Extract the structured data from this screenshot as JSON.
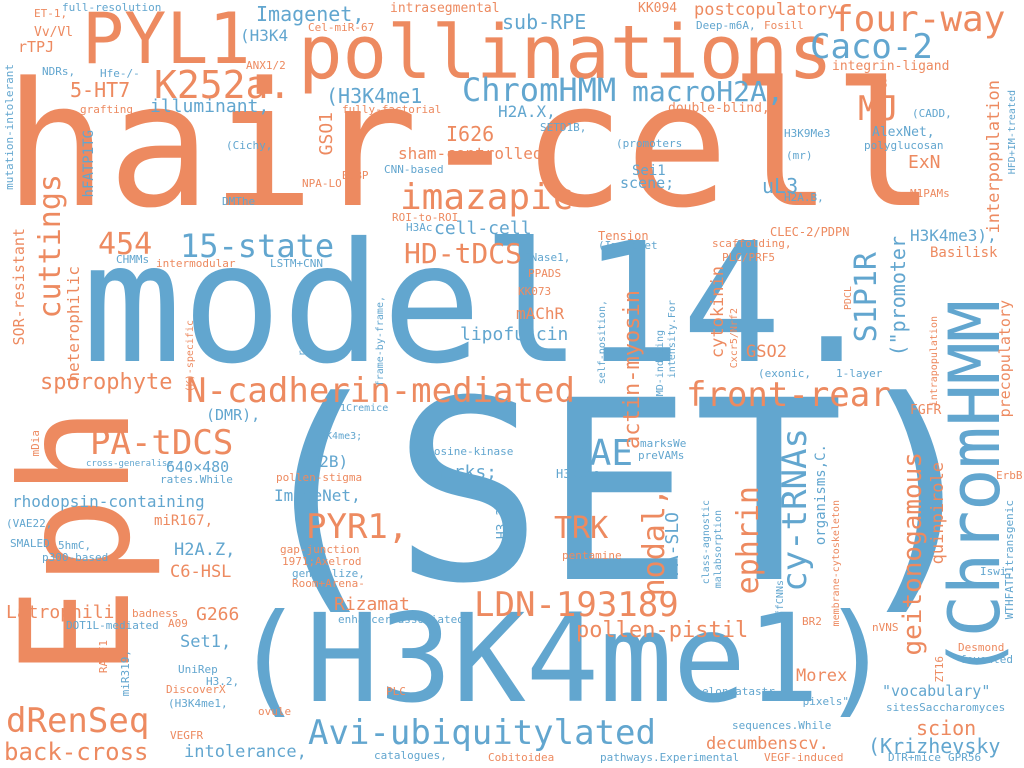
{
  "words": {
    "set": "(SET)",
    "model14": "model14.",
    "hair_cell": "hair-cell",
    "h3k4me1_big": "(H3K4me1)",
    "eph": "Eph",
    "pollinations": "pollinations",
    "pyl1": "PYL1",
    "chromhmm_v": "(ChromHMM",
    "four_way": "four-way",
    "caco2": "Caco-2",
    "k252a": "K252a.",
    "chromhmm_h": "ChromHMM",
    "macroh2a": "macroH2A,",
    "mj": "MJ",
    "imazapic": "imazapic",
    "n_cadherin": "N-cadherin-mediated",
    "front_rear": "front-rear",
    "ldn": "LDN-193189",
    "avi": "Avi-ubiquitylated",
    "drenseq": "dRenSeq",
    "back_cross": "back-cross",
    "pa_tdcs": "PA-tDCS",
    "pyr1": "PYR1,",
    "vae": "VAE",
    "trk": "TRK",
    "hd_tdcs": "HD-tDCS",
    "state15": "15-state",
    "n454": "454",
    "cuttings": "cuttings",
    "sporophyte": "sporophyte",
    "imagenet": "Imagenet,",
    "sub_rpe": "sub-RPE",
    "postcopulatory": "postcopulatory",
    "ht7": "5-HT7",
    "illuminant": "illuminant,",
    "h3k4": "(H3K4",
    "h3k4me1_s": "(H3K4me1",
    "h2ax": "H2A.X,",
    "i626": "I626",
    "sham": "sham-controlled",
    "gso1": "GSO1",
    "cell_cell": "cell-cell",
    "lipofuscin": "lipofuscin",
    "machr": "mAChR",
    "s1p1r": "S1P1R",
    "promoter": "(\"promoter",
    "h3k4me3": "H3K4me3),",
    "interpopulation": "interpopulation",
    "exn": "ExN",
    "ul3": "uL3",
    "gso2": "GSO2",
    "actin_myosin": "actin-myosin",
    "cytokinin": "cytokinin",
    "cy_trnas": "cy-tRNAs",
    "ephrin": "ephrin",
    "nodal": "nodal,",
    "fa_slo": "FA-SLO",
    "geitonogamous": "geitonogamous",
    "quinpirole": "quinpirole",
    "scion": "scion",
    "morex": "Morex",
    "vocabulary": "\"vocabulary\"",
    "krizhevsky": "(Krizhevsky",
    "decumbenscv": "decumbenscv.",
    "intolerance": "intolerance,",
    "pollen_pistil": "pollen-pistil",
    "rizamat": "Rizamat",
    "latrophilin": "Latrophilin",
    "g266": "G266",
    "set1": "Set1,",
    "c6_hsl": "C6-HSL",
    "h2az": "H2A.Z,",
    "mir167": "miR167,",
    "rhodopsin": "rhodopsin-containing",
    "imagenet2": "ImageNet,",
    "marks": "marks;",
    "h2b": "(H2B)",
    "dmr": "(DMR),",
    "res": "640×480",
    "heterophilic": "heterophilic",
    "sor": "SOR-resistant",
    "hfatp1tg": "hFATP1TG",
    "rtpj": "rTPJ",
    "vvvl": "Vv/Vl",
    "mutation": "mutation-intolerant",
    "full_res": "full-resolution",
    "intrasegmental": "intrasegmental",
    "kk094": "KK094",
    "integrin": "integrin-ligand",
    "v3": "V3",
    "double_blind": "double-blind,",
    "alexnet": "AlexNet,",
    "polyglucosan": "polyglucosan",
    "fgfr": "FGFR",
    "precopulatory": "precopulatory",
    "basilisk": "Basilisk",
    "clec2": "CLEC-2/PDPN",
    "plc_prf5": "PLC/PRF5",
    "pentamine": "pentamine",
    "enhancer": "enhancer-associated",
    "tyrosine": "tyrosine-kinase",
    "h3k9ac": "H3K9Ac,",
    "ppads": "PPADS",
    "kk073": "KK073",
    "dnase1": "DNase1,",
    "tension": "Tension",
    "scaffolding": "scaffolding,",
    "scene": "scene;",
    "sei1": "Sei1",
    "setd1b": "SETD1B,",
    "cnn_based": "CNN-based",
    "npa_lo": "NPA-LO",
    "roi": "ROI-to-ROI",
    "lstm": "LSTM+CNN",
    "chmms": "CHMMs",
    "intermodular": "intermodular",
    "dmthe": "DMThe",
    "cichy": "(Cichy,",
    "grafting": "grafting",
    "hfe": "Hfe-/-",
    "ndrs": "NDRs,",
    "et1": "ET-1,",
    "anx1": "ANX1/2",
    "cel_mir": "Cel-miR-67",
    "deep_m6a": "Deep-m6A,",
    "fosill": "Fosill",
    "h3k9me3": "H3K9Me3",
    "cadd": "(CADD,",
    "m1pams": "M1PAMs",
    "h2ab": "H2A.B,",
    "mdia": "mDia",
    "vae22": "(VAE22,",
    "smaled": "SMALED",
    "p300": "p300-based",
    "5hmc": "5hmC,",
    "badness": "badness",
    "dot1l": "DOT1L-mediated",
    "unirep": "UniRep",
    "discoverx": "DiscoverX",
    "vegfr": "VEGFR",
    "catalogues": "catalogues,",
    "vegf": "VEGF-induced",
    "dtr": "DTR+mice",
    "gpr56": "GPR56",
    "elongatastr": "elongatastr.",
    "pixels": "\"pixels\"",
    "sites": "sitesSaccharomyces",
    "desmond": "Desmond",
    "foveated": "foveated",
    "nvns": "nVNS",
    "br2": "BR2",
    "plc": "PLC",
    "ovule": "ovule",
    "axelrod": "1971;Axelrod",
    "gap": "gap-junction",
    "generalize": "generalize,",
    "room": "Room+Arena-",
    "rates": "rates.While",
    "pollen_stigma": "pollen-stigma",
    "cross_gen": "cross-generalise",
    "iswi": "Iswi,",
    "erbb": "ErbB",
    "pathways": "pathways.Experimental",
    "cobitoidea": "Cobitoidea",
    "sequences": "sequences.While",
    "one_layer": "1-layer",
    "exonic": "(exonic,",
    "marks_we": "marksWe",
    "prevams": "preVAMs",
    "h3": "H3.3,",
    "nmd": "NMD-inducing",
    "intensity": "intensity.For",
    "cxcr5": "Cxcr5/Nrf2",
    "self_position": "self-position,",
    "imagenet3": "(ImageNet",
    "fully_factorial": "fully-factorial",
    "promoters": "(promoters",
    "bcbp": "BCBP",
    "h3ac": "H3Ac",
    "rootstocks": "rootstocks",
    "frame": "frame-by-frame,",
    "k_specific": "(K)-specific",
    "pdcl": "PDCL",
    "intrapopulation": "intrapopulation",
    "membrane": "membrane-cytoskeleton",
    "organisms": "organisms,C.",
    "transgenic": "WTHFATP1transgenic",
    "zt16": "ZT16",
    "class_agnostic": "class-agnostic",
    "maladsorption": "malabsorption",
    "ffcnns": "ffCNNs",
    "h3k4me3b": "H3K4me3;",
    "ucp1": "UCP1Cremice",
    "mr": "(mr)",
    "hfd": "HFD+IM-treated",
    "h32": "H3.2,",
    "h3k4me1c": "(H3K4me1,",
    "a09": "A09",
    "ralf1": "RALF1",
    "mir319": "miR319,",
    "abc": "ADC"
  }
}
